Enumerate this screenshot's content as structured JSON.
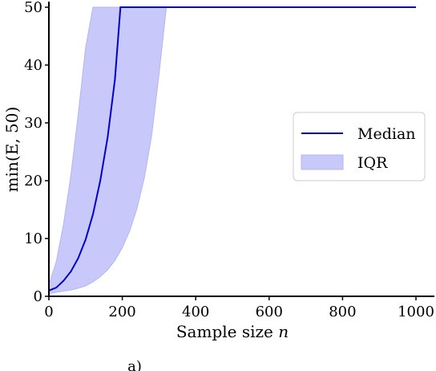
{
  "chart_data": {
    "type": "line",
    "title": "",
    "xlabel": "Sample size",
    "xlabel_var": "n",
    "ylabel": "min(E, 50)",
    "xlim": [
      0,
      1000
    ],
    "ylim": [
      0,
      50
    ],
    "xticks": [
      0,
      200,
      400,
      600,
      800,
      1000
    ],
    "yticks": [
      0,
      10,
      20,
      30,
      40,
      50
    ],
    "grid": false,
    "legend_position": "center-right",
    "series": [
      {
        "name": "Median",
        "kind": "line",
        "color": "#0000cc",
        "x": [
          0,
          20,
          40,
          60,
          80,
          100,
          120,
          140,
          160,
          180,
          195,
          200,
          400,
          600,
          800,
          1000
        ],
        "y": [
          1,
          1.5,
          2.7,
          4.3,
          6.6,
          9.8,
          14.2,
          20,
          27.5,
          37.5,
          50,
          50,
          50,
          50,
          50,
          50
        ]
      },
      {
        "name": "IQR",
        "kind": "band",
        "color": "#c8c8fa",
        "x": [
          0,
          20,
          40,
          60,
          80,
          100,
          120,
          140,
          160,
          180,
          200,
          220,
          240,
          260,
          280,
          300,
          320,
          400,
          600,
          800,
          1000
        ],
        "lower": [
          0.5,
          0.7,
          0.9,
          1.1,
          1.4,
          1.8,
          2.5,
          3.4,
          4.6,
          6.2,
          8.4,
          11.3,
          15.2,
          20.5,
          27.8,
          38.4,
          50,
          50,
          50,
          50,
          50
        ],
        "upper": [
          2,
          6,
          12.5,
          21,
          31.5,
          43,
          50,
          50,
          50,
          50,
          50,
          50,
          50,
          50,
          50,
          50,
          50,
          50,
          50,
          50,
          50
        ]
      }
    ]
  },
  "caption": "a)"
}
